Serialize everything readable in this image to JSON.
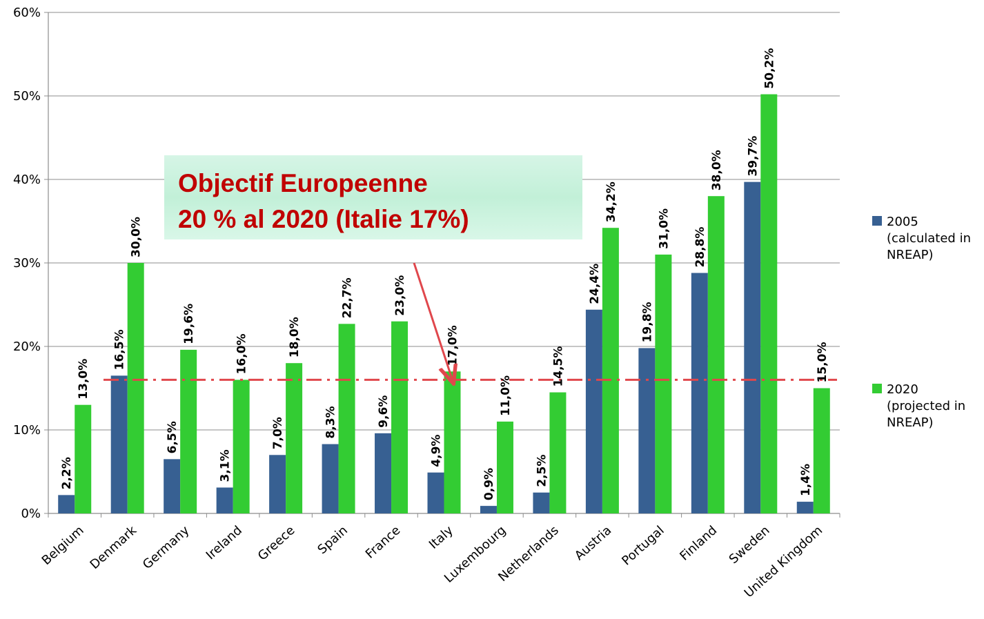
{
  "chart_data": {
    "type": "bar",
    "categories": [
      "Belgium",
      "Denmark",
      "Germany",
      "Ireland",
      "Greece",
      "Spain",
      "France",
      "Italy",
      "Luxembourg",
      "Netherlands",
      "Austria",
      "Portugal",
      "Finland",
      "Sweden",
      "United Kingdom"
    ],
    "series": [
      {
        "name": "2005 (calculated in NREAP)",
        "color": "#376092",
        "values": [
          2.2,
          16.5,
          6.5,
          3.1,
          7.0,
          8.3,
          9.6,
          4.9,
          0.9,
          2.5,
          24.4,
          19.8,
          28.8,
          39.7,
          1.4
        ],
        "labels": [
          "2,2%",
          "16,5%",
          "6,5%",
          "3,1%",
          "7,0%",
          "8,3%",
          "9,6%",
          "4,9%",
          "0,9%",
          "2,5%",
          "24,4%",
          "19,8%",
          "28,8%",
          "39,7%",
          "1,4%"
        ]
      },
      {
        "name": "2020 (projected in NREAP)",
        "color": "#33cc33",
        "values": [
          13.0,
          30.0,
          19.6,
          16.0,
          18.0,
          22.7,
          23.0,
          17.0,
          11.0,
          14.5,
          34.2,
          31.0,
          38.0,
          50.2,
          15.0
        ],
        "labels": [
          "13,0%",
          "30,0%",
          "19,6%",
          "16,0%",
          "18,0%",
          "22,7%",
          "23,0%",
          "17,0%",
          "11,0%",
          "14,5%",
          "34,2%",
          "31,0%",
          "38,0%",
          "50,2%",
          "15,0%"
        ]
      }
    ],
    "legend": [
      {
        "lines": [
          "2005",
          "(calculated in",
          "NREAP)"
        ],
        "color": "#376092"
      },
      {
        "lines": [
          "2020",
          "(projected in",
          "NREAP)"
        ],
        "color": "#33cc33"
      }
    ],
    "legend_position": "right",
    "ylim": [
      0,
      60
    ],
    "yticks": [
      0,
      10,
      20,
      30,
      40,
      50,
      60
    ],
    "ytick_labels": [
      "0%",
      "10%",
      "20%",
      "30%",
      "40%",
      "50%",
      "60%"
    ],
    "grid": true,
    "reference_line": {
      "value": 16,
      "color": "#e0474c",
      "style": "dash-dot"
    },
    "annotation": {
      "lines": [
        "Objectif Europeenne",
        "20 % al 2020 (Italie 17%)"
      ],
      "text_color": "#c00000",
      "arrow_to_category": "Italy"
    }
  }
}
